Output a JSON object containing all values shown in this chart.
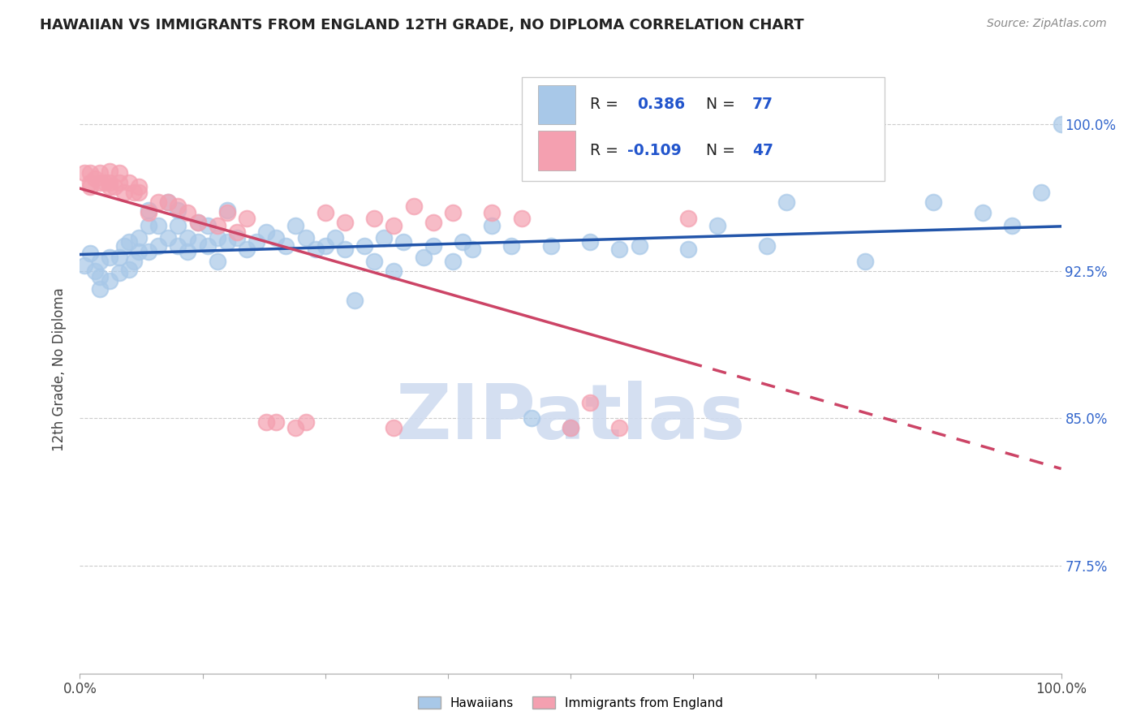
{
  "title": "HAWAIIAN VS IMMIGRANTS FROM ENGLAND 12TH GRADE, NO DIPLOMA CORRELATION CHART",
  "source": "Source: ZipAtlas.com",
  "ylabel": "12th Grade, No Diploma",
  "ytick_labels": [
    "100.0%",
    "92.5%",
    "85.0%",
    "77.5%"
  ],
  "ytick_values": [
    1.0,
    0.925,
    0.85,
    0.775
  ],
  "xlim": [
    0.0,
    1.0
  ],
  "ylim": [
    0.72,
    1.03
  ],
  "color_blue": "#A8C8E8",
  "color_pink": "#F4A0B0",
  "color_blue_line": "#2255AA",
  "color_pink_line": "#CC4466",
  "watermark_color": "#D0DCF0",
  "hawaiians_x": [
    0.005,
    0.01,
    0.015,
    0.02,
    0.02,
    0.02,
    0.03,
    0.03,
    0.04,
    0.04,
    0.045,
    0.05,
    0.05,
    0.055,
    0.06,
    0.06,
    0.07,
    0.07,
    0.07,
    0.08,
    0.08,
    0.09,
    0.09,
    0.1,
    0.1,
    0.1,
    0.11,
    0.11,
    0.12,
    0.12,
    0.13,
    0.13,
    0.14,
    0.14,
    0.15,
    0.15,
    0.16,
    0.17,
    0.18,
    0.19,
    0.2,
    0.21,
    0.22,
    0.23,
    0.24,
    0.25,
    0.26,
    0.27,
    0.28,
    0.29,
    0.3,
    0.31,
    0.32,
    0.33,
    0.35,
    0.36,
    0.38,
    0.39,
    0.4,
    0.42,
    0.44,
    0.46,
    0.48,
    0.5,
    0.52,
    0.55,
    0.57,
    0.62,
    0.65,
    0.7,
    0.72,
    0.8,
    0.87,
    0.92,
    0.95,
    0.98,
    1.0
  ],
  "hawaiians_y": [
    0.928,
    0.934,
    0.925,
    0.93,
    0.922,
    0.916,
    0.932,
    0.92,
    0.932,
    0.924,
    0.938,
    0.94,
    0.926,
    0.93,
    0.942,
    0.935,
    0.956,
    0.948,
    0.935,
    0.948,
    0.938,
    0.96,
    0.942,
    0.948,
    0.956,
    0.938,
    0.942,
    0.935,
    0.95,
    0.94,
    0.948,
    0.938,
    0.942,
    0.93,
    0.956,
    0.94,
    0.942,
    0.936,
    0.94,
    0.945,
    0.942,
    0.938,
    0.948,
    0.942,
    0.936,
    0.938,
    0.942,
    0.936,
    0.91,
    0.938,
    0.93,
    0.942,
    0.925,
    0.94,
    0.932,
    0.938,
    0.93,
    0.94,
    0.936,
    0.948,
    0.938,
    0.85,
    0.938,
    0.845,
    0.94,
    0.936,
    0.938,
    0.936,
    0.948,
    0.938,
    0.96,
    0.93,
    0.96,
    0.955,
    0.948,
    0.965,
    1.0
  ],
  "england_x": [
    0.005,
    0.01,
    0.01,
    0.01,
    0.015,
    0.02,
    0.02,
    0.025,
    0.03,
    0.03,
    0.03,
    0.035,
    0.04,
    0.04,
    0.045,
    0.05,
    0.055,
    0.06,
    0.06,
    0.07,
    0.08,
    0.09,
    0.1,
    0.11,
    0.12,
    0.14,
    0.15,
    0.16,
    0.17,
    0.19,
    0.2,
    0.22,
    0.23,
    0.25,
    0.27,
    0.3,
    0.32,
    0.34,
    0.36,
    0.38,
    0.42,
    0.45,
    0.5,
    0.52,
    0.55,
    0.62,
    0.32
  ],
  "england_y": [
    0.975,
    0.975,
    0.97,
    0.968,
    0.972,
    0.97,
    0.975,
    0.97,
    0.976,
    0.97,
    0.968,
    0.968,
    0.97,
    0.975,
    0.965,
    0.97,
    0.965,
    0.965,
    0.968,
    0.955,
    0.96,
    0.96,
    0.958,
    0.955,
    0.95,
    0.948,
    0.955,
    0.945,
    0.952,
    0.848,
    0.848,
    0.845,
    0.848,
    0.955,
    0.95,
    0.952,
    0.948,
    0.958,
    0.95,
    0.955,
    0.955,
    0.952,
    0.845,
    0.858,
    0.845,
    0.952,
    0.845
  ]
}
